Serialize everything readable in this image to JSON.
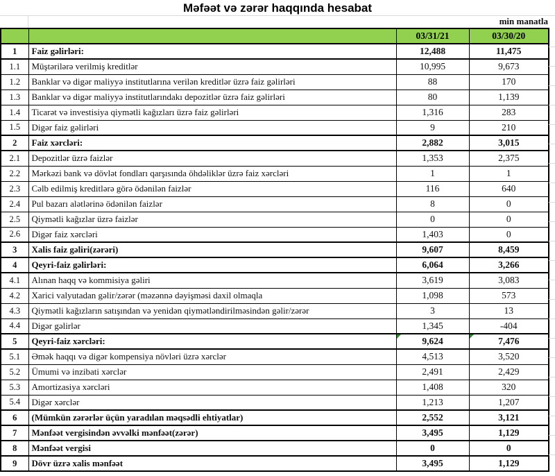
{
  "title": "Məfəət və zərər haqqında hesabat",
  "unit_note": "min manatla",
  "colors": {
    "header_green": "#92d050",
    "corner_flag_green": "#2e8b2e",
    "gridline_gray": "#d9d9d9",
    "border_black": "#000000"
  },
  "table": {
    "date_columns": [
      "03/31/21",
      "03/30/20"
    ],
    "rows": [
      {
        "no": "1",
        "label": "Faiz gəlirləri:",
        "values": [
          "12,488",
          "11,475"
        ],
        "bold": true,
        "corner_flag": false
      },
      {
        "no": "1.1",
        "label": "Müştərilərə verilmiş kreditlər",
        "values": [
          "10,995",
          "9,673"
        ],
        "bold": false,
        "corner_flag": false
      },
      {
        "no": "1.2",
        "label": "Banklar və digər maliyyə institutlarına verilən kreditlər üzrə faiz gəlirləri",
        "values": [
          "88",
          "170"
        ],
        "bold": false,
        "corner_flag": false
      },
      {
        "no": "1.3",
        "label": "Banklar və digər maliyyə institutlarındakı depozitlər üzrə faiz gəlirləri",
        "values": [
          "80",
          "1,139"
        ],
        "bold": false,
        "corner_flag": false
      },
      {
        "no": "1.4",
        "label": "Ticarət və investisiya qiymətli kağızları üzrə faiz gəlirləri",
        "values": [
          "1,316",
          "283"
        ],
        "bold": false,
        "corner_flag": false
      },
      {
        "no": "1.5",
        "label": "Digər faiz gəlirləri",
        "values": [
          "9",
          "210"
        ],
        "bold": false,
        "corner_flag": false
      },
      {
        "no": "2",
        "label": "Faiz xərcləri:",
        "values": [
          "2,882",
          "3,015"
        ],
        "bold": true,
        "corner_flag": false
      },
      {
        "no": "2.1",
        "label": "Depozitlər üzrə faizlər",
        "values": [
          "1,353",
          "2,375"
        ],
        "bold": false,
        "corner_flag": false
      },
      {
        "no": "2.2",
        "label": "Mərkəzi bank və dövlət fondları qarşısında öhdəliklər üzrə faiz xərcləri",
        "values": [
          "1",
          "1"
        ],
        "bold": false,
        "corner_flag": false
      },
      {
        "no": "2.3",
        "label": "Cəlb edilmiş kreditlərə görə ödənilən faizlər",
        "values": [
          "116",
          "640"
        ],
        "bold": false,
        "corner_flag": false
      },
      {
        "no": "2.4",
        "label": "Pul bazarı alətlərinə ödənilən faizlər",
        "values": [
          "8",
          "0"
        ],
        "bold": false,
        "corner_flag": false
      },
      {
        "no": "2.5",
        "label": "Qiymətli kağızlar üzrə faizlər",
        "values": [
          "0",
          "0"
        ],
        "bold": false,
        "corner_flag": false
      },
      {
        "no": "2.6",
        "label": "Digər faiz xərcləri",
        "values": [
          "1,403",
          "0"
        ],
        "bold": false,
        "corner_flag": false
      },
      {
        "no": "3",
        "label": "Xalis faiz gəliri(zərəri)",
        "values": [
          "9,607",
          "8,459"
        ],
        "bold": true,
        "corner_flag": false
      },
      {
        "no": "4",
        "label": "Qeyri-faiz gəlirləri:",
        "values": [
          "6,064",
          "3,266"
        ],
        "bold": true,
        "corner_flag": false
      },
      {
        "no": "4.1",
        "label": "Alınan haqq və kommisiya gəliri",
        "values": [
          "3,619",
          "3,083"
        ],
        "bold": false,
        "corner_flag": false
      },
      {
        "no": "4.2",
        "label": "Xarici valyutadan gəlir/zərər (məzənnə dəyişməsi daxil olmaqla",
        "values": [
          "1,098",
          "573"
        ],
        "bold": false,
        "corner_flag": false
      },
      {
        "no": "4.3",
        "label": "Qiymətli kağızların satışından və yenidən qiymətləndirilməsindən gəlir/zərər",
        "values": [
          "3",
          "13"
        ],
        "bold": false,
        "corner_flag": false
      },
      {
        "no": "4.4",
        "label": "Digər gəlirlər",
        "values": [
          "1,345",
          "-404"
        ],
        "bold": false,
        "corner_flag": false
      },
      {
        "no": "5",
        "label": "Qeyri-faiz xərcləri:",
        "values": [
          "9,624",
          "7,476"
        ],
        "bold": true,
        "corner_flag": true
      },
      {
        "no": "5.1",
        "label": "Əmək haqqı və digər kompensiya növləri üzrə xərclər",
        "values": [
          "4,513",
          "3,520"
        ],
        "bold": false,
        "corner_flag": false
      },
      {
        "no": "5.2",
        "label": "Ümumi və inzibati xərclər",
        "values": [
          "2,491",
          "2,429"
        ],
        "bold": false,
        "corner_flag": false
      },
      {
        "no": "5.3",
        "label": "Amortizasiya xərcləri",
        "values": [
          "1,408",
          "320"
        ],
        "bold": false,
        "corner_flag": false
      },
      {
        "no": "5.4",
        "label": "Digər xərclər",
        "values": [
          "1,213",
          "1,207"
        ],
        "bold": false,
        "corner_flag": false
      },
      {
        "no": "6",
        "label": "(Mümkün zərərlər üçün yaradılan məqsədli ehtiyatlar)",
        "values": [
          "2,552",
          "3,121"
        ],
        "bold": true,
        "corner_flag": false
      },
      {
        "no": "7",
        "label": "Mənfəət vergisindən əvvəlki mənfəət(zərər)",
        "values": [
          "3,495",
          "1,129"
        ],
        "bold": true,
        "corner_flag": false
      },
      {
        "no": "8",
        "label": "Mənfəət vergisi",
        "values": [
          "0",
          "0"
        ],
        "bold": true,
        "corner_flag": false
      },
      {
        "no": "9",
        "label": "Dövr üzrə xalis mənfəət",
        "values": [
          "3,495",
          "1,129"
        ],
        "bold": true,
        "corner_flag": false
      }
    ]
  }
}
